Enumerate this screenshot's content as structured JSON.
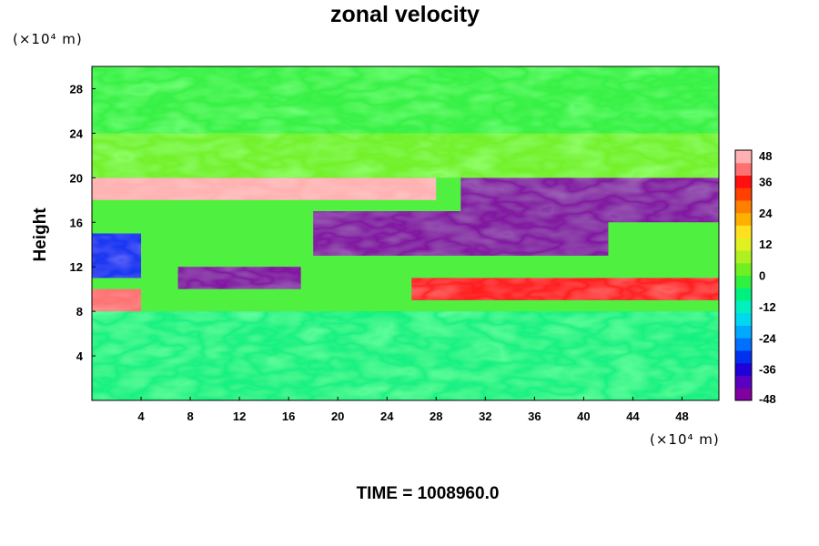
{
  "chart_data": {
    "type": "heatmap",
    "title": "zonal velocity",
    "ylabel": "Height",
    "x_unit_label": "(×10⁴ m)",
    "y_unit_label": "(×10⁴ m)",
    "xlim": [
      0,
      51
    ],
    "ylim": [
      0,
      30
    ],
    "x_ticks": [
      4,
      8,
      12,
      16,
      20,
      24,
      28,
      32,
      36,
      40,
      44,
      48
    ],
    "y_ticks": [
      4,
      8,
      12,
      16,
      20,
      24,
      28
    ],
    "colorbar": {
      "range": [
        -48,
        48
      ],
      "ticks": [
        48,
        36,
        24,
        12,
        0,
        -12,
        -24,
        -36,
        -48
      ],
      "colors": [
        "#8000a0",
        "#5a00c0",
        "#2000d8",
        "#0030f0",
        "#0070ff",
        "#00a8ff",
        "#00d8f0",
        "#00f0c0",
        "#00f080",
        "#30f040",
        "#70f020",
        "#b0f020",
        "#e0f020",
        "#ffe020",
        "#ffb000",
        "#ff8000",
        "#ff4000",
        "#ff1010",
        "#ff7070",
        "#ffb0b0"
      ]
    },
    "bands": [
      {
        "y": [
          0,
          8
        ],
        "level": -6
      },
      {
        "y": [
          8,
          10
        ],
        "level": 42,
        "x": [
          0,
          4
        ]
      },
      {
        "y": [
          9,
          11
        ],
        "level": 36,
        "x": [
          26,
          51
        ]
      },
      {
        "y": [
          10,
          12
        ],
        "level": -48,
        "x": [
          7,
          17
        ]
      },
      {
        "y": [
          11,
          15
        ],
        "level": -32,
        "x": [
          0,
          4
        ]
      },
      {
        "y": [
          13,
          17
        ],
        "level": -48,
        "x": [
          18,
          42
        ]
      },
      {
        "y": [
          16,
          20
        ],
        "level": -48,
        "x": [
          30,
          51
        ]
      },
      {
        "y": [
          18,
          20
        ],
        "level": 44,
        "x": [
          0,
          28
        ]
      },
      {
        "y": [
          20,
          24
        ],
        "level": 4
      },
      {
        "y": [
          24,
          30
        ],
        "level": -4
      }
    ]
  },
  "footer": "TIME = 1008960.0"
}
